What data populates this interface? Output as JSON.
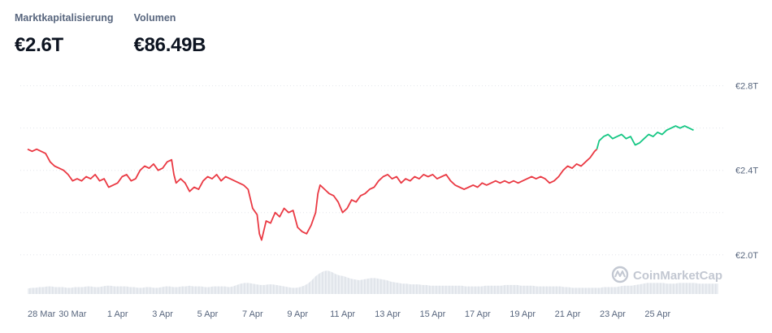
{
  "stats": {
    "market_cap_label": "Marktkapitalisierung",
    "market_cap_value": "€2.6T",
    "volume_label": "Volumen",
    "volume_value": "€86.49B"
  },
  "watermark": {
    "text": "CoinMarketCap",
    "icon": "coinmarketcap-logo-icon"
  },
  "chart_data": {
    "type": "line",
    "y_axis_position": "right",
    "grid": "horizontal-dotted",
    "ylim": [
      1.88,
      2.86
    ],
    "yticks": [
      {
        "value": 2.8,
        "label": "€2.8T"
      },
      {
        "value": 2.4,
        "label": "€2.4T"
      },
      {
        "value": 2.0,
        "label": "€2.0T"
      }
    ],
    "xlim": [
      0,
      30.7
    ],
    "xticks": [
      {
        "value": 0,
        "label": "28 Mar"
      },
      {
        "value": 2,
        "label": "30 Mar"
      },
      {
        "value": 4,
        "label": "1 Apr"
      },
      {
        "value": 6,
        "label": "3 Apr"
      },
      {
        "value": 8,
        "label": "5 Apr"
      },
      {
        "value": 10,
        "label": "7 Apr"
      },
      {
        "value": 12,
        "label": "9 Apr"
      },
      {
        "value": 14,
        "label": "11 Apr"
      },
      {
        "value": 16,
        "label": "13 Apr"
      },
      {
        "value": 18,
        "label": "15 Apr"
      },
      {
        "value": 20,
        "label": "17 Apr"
      },
      {
        "value": 22,
        "label": "19 Apr"
      },
      {
        "value": 24,
        "label": "21 Apr"
      },
      {
        "value": 26,
        "label": "23 Apr"
      },
      {
        "value": 28,
        "label": "25 Apr"
      }
    ],
    "series": [
      {
        "color": "#ea3943",
        "points": [
          [
            0.0,
            2.5
          ],
          [
            0.2,
            2.49
          ],
          [
            0.4,
            2.5
          ],
          [
            0.6,
            2.49
          ],
          [
            0.8,
            2.48
          ],
          [
            1.0,
            2.44
          ],
          [
            1.2,
            2.42
          ],
          [
            1.4,
            2.41
          ],
          [
            1.6,
            2.4
          ],
          [
            1.8,
            2.38
          ],
          [
            2.0,
            2.35
          ],
          [
            2.2,
            2.36
          ],
          [
            2.4,
            2.35
          ],
          [
            2.6,
            2.37
          ],
          [
            2.8,
            2.36
          ],
          [
            3.0,
            2.38
          ],
          [
            3.2,
            2.35
          ],
          [
            3.4,
            2.36
          ],
          [
            3.6,
            2.32
          ],
          [
            3.8,
            2.33
          ],
          [
            4.0,
            2.34
          ],
          [
            4.2,
            2.37
          ],
          [
            4.4,
            2.38
          ],
          [
            4.6,
            2.35
          ],
          [
            4.8,
            2.36
          ],
          [
            5.0,
            2.4
          ],
          [
            5.2,
            2.42
          ],
          [
            5.4,
            2.41
          ],
          [
            5.6,
            2.43
          ],
          [
            5.8,
            2.4
          ],
          [
            6.0,
            2.41
          ],
          [
            6.2,
            2.44
          ],
          [
            6.4,
            2.45
          ],
          [
            6.5,
            2.38
          ],
          [
            6.6,
            2.34
          ],
          [
            6.8,
            2.36
          ],
          [
            7.0,
            2.34
          ],
          [
            7.2,
            2.3
          ],
          [
            7.4,
            2.32
          ],
          [
            7.6,
            2.31
          ],
          [
            7.8,
            2.35
          ],
          [
            8.0,
            2.37
          ],
          [
            8.2,
            2.36
          ],
          [
            8.4,
            2.38
          ],
          [
            8.6,
            2.35
          ],
          [
            8.8,
            2.37
          ],
          [
            9.0,
            2.36
          ],
          [
            9.2,
            2.35
          ],
          [
            9.4,
            2.34
          ],
          [
            9.6,
            2.33
          ],
          [
            9.8,
            2.31
          ],
          [
            10.0,
            2.22
          ],
          [
            10.2,
            2.19
          ],
          [
            10.3,
            2.1
          ],
          [
            10.4,
            2.07
          ],
          [
            10.6,
            2.16
          ],
          [
            10.8,
            2.15
          ],
          [
            11.0,
            2.2
          ],
          [
            11.2,
            2.18
          ],
          [
            11.4,
            2.22
          ],
          [
            11.6,
            2.2
          ],
          [
            11.8,
            2.21
          ],
          [
            12.0,
            2.13
          ],
          [
            12.2,
            2.11
          ],
          [
            12.4,
            2.1
          ],
          [
            12.6,
            2.14
          ],
          [
            12.8,
            2.2
          ],
          [
            12.9,
            2.29
          ],
          [
            13.0,
            2.33
          ],
          [
            13.2,
            2.31
          ],
          [
            13.4,
            2.29
          ],
          [
            13.6,
            2.28
          ],
          [
            13.8,
            2.25
          ],
          [
            14.0,
            2.2
          ],
          [
            14.2,
            2.22
          ],
          [
            14.4,
            2.26
          ],
          [
            14.6,
            2.25
          ],
          [
            14.8,
            2.28
          ],
          [
            15.0,
            2.29
          ],
          [
            15.2,
            2.31
          ],
          [
            15.4,
            2.32
          ],
          [
            15.6,
            2.35
          ],
          [
            15.8,
            2.37
          ],
          [
            16.0,
            2.38
          ],
          [
            16.2,
            2.36
          ],
          [
            16.4,
            2.37
          ],
          [
            16.6,
            2.34
          ],
          [
            16.8,
            2.36
          ],
          [
            17.0,
            2.35
          ],
          [
            17.2,
            2.37
          ],
          [
            17.4,
            2.36
          ],
          [
            17.6,
            2.38
          ],
          [
            17.8,
            2.37
          ],
          [
            18.0,
            2.38
          ],
          [
            18.2,
            2.36
          ],
          [
            18.4,
            2.37
          ],
          [
            18.6,
            2.38
          ],
          [
            18.8,
            2.35
          ],
          [
            19.0,
            2.33
          ],
          [
            19.2,
            2.32
          ],
          [
            19.4,
            2.31
          ],
          [
            19.6,
            2.32
          ],
          [
            19.8,
            2.33
          ],
          [
            20.0,
            2.32
          ],
          [
            20.2,
            2.34
          ],
          [
            20.4,
            2.33
          ],
          [
            20.6,
            2.34
          ],
          [
            20.8,
            2.35
          ],
          [
            21.0,
            2.34
          ],
          [
            21.2,
            2.35
          ],
          [
            21.4,
            2.34
          ],
          [
            21.6,
            2.35
          ],
          [
            21.8,
            2.34
          ],
          [
            22.0,
            2.35
          ],
          [
            22.2,
            2.36
          ],
          [
            22.4,
            2.37
          ],
          [
            22.6,
            2.36
          ],
          [
            22.8,
            2.37
          ],
          [
            23.0,
            2.36
          ],
          [
            23.2,
            2.34
          ],
          [
            23.4,
            2.35
          ],
          [
            23.6,
            2.37
          ],
          [
            23.8,
            2.4
          ],
          [
            24.0,
            2.42
          ],
          [
            24.2,
            2.41
          ],
          [
            24.4,
            2.43
          ],
          [
            24.6,
            2.42
          ],
          [
            24.8,
            2.44
          ],
          [
            25.0,
            2.46
          ],
          [
            25.2,
            2.49
          ],
          [
            25.3,
            2.5
          ]
        ]
      },
      {
        "color": "#16c784",
        "points": [
          [
            25.3,
            2.5
          ],
          [
            25.4,
            2.54
          ],
          [
            25.6,
            2.56
          ],
          [
            25.8,
            2.57
          ],
          [
            26.0,
            2.55
          ],
          [
            26.2,
            2.56
          ],
          [
            26.4,
            2.57
          ],
          [
            26.6,
            2.55
          ],
          [
            26.8,
            2.56
          ],
          [
            27.0,
            2.52
          ],
          [
            27.2,
            2.53
          ],
          [
            27.4,
            2.55
          ],
          [
            27.6,
            2.57
          ],
          [
            27.8,
            2.56
          ],
          [
            28.0,
            2.58
          ],
          [
            28.2,
            2.57
          ],
          [
            28.4,
            2.59
          ],
          [
            28.6,
            2.6
          ],
          [
            28.8,
            2.61
          ],
          [
            29.0,
            2.6
          ],
          [
            29.2,
            2.61
          ],
          [
            29.4,
            2.6
          ],
          [
            29.6,
            2.59
          ]
        ]
      }
    ],
    "volume": {
      "max": 40,
      "values": [
        8,
        9,
        9,
        10,
        10,
        11,
        11,
        10,
        10,
        10,
        9,
        9,
        10,
        10,
        10,
        11,
        11,
        10,
        10,
        11,
        12,
        12,
        11,
        11,
        11,
        11,
        10,
        10,
        9,
        9,
        10,
        10,
        9,
        9,
        10,
        11,
        11,
        10,
        10,
        11,
        11,
        12,
        11,
        11,
        11,
        10,
        10,
        11,
        11,
        11,
        11,
        10,
        11,
        13,
        15,
        16,
        16,
        15,
        14,
        13,
        13,
        14,
        14,
        13,
        12,
        11,
        10,
        9,
        9,
        10,
        12,
        15,
        20,
        26,
        30,
        33,
        34,
        32,
        29,
        27,
        26,
        24,
        22,
        21,
        20,
        21,
        22,
        23,
        23,
        22,
        21,
        20,
        18,
        17,
        16,
        15,
        15,
        14,
        14,
        14,
        13,
        13,
        12,
        12,
        12,
        12,
        12,
        12,
        12,
        12,
        12,
        11,
        11,
        11,
        11,
        11,
        12,
        12,
        12,
        12,
        12,
        13,
        13,
        13,
        13,
        12,
        12,
        12,
        12,
        11,
        11,
        11,
        11,
        11,
        11,
        11,
        10,
        10,
        9,
        9,
        9,
        9,
        9,
        9,
        9,
        9,
        10,
        10,
        10,
        10,
        11,
        12,
        12,
        12,
        13,
        14,
        15,
        16,
        16,
        16,
        16,
        16,
        15,
        15,
        15,
        16,
        16,
        16,
        16,
        16,
        15,
        15,
        15,
        15,
        15,
        15
      ]
    }
  }
}
